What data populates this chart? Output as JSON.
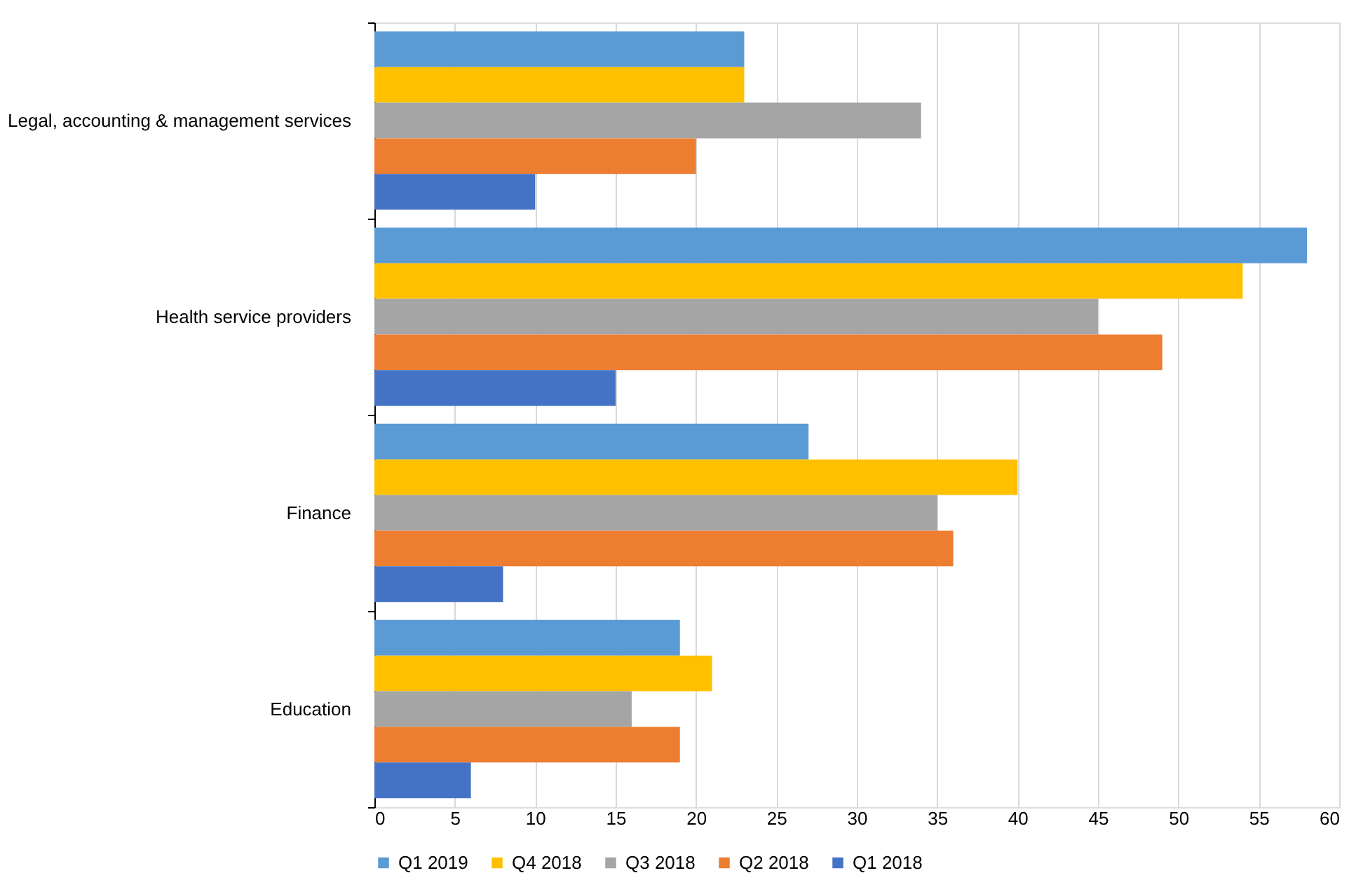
{
  "chart_data": {
    "type": "bar",
    "orientation": "horizontal",
    "categories": [
      "Legal, accounting & management services",
      "Health service providers",
      "Finance",
      "Education"
    ],
    "series": [
      {
        "name": "Q1 2019",
        "color": "#5b9bd5",
        "values": [
          23,
          58,
          27,
          19
        ]
      },
      {
        "name": "Q4 2018",
        "color": "#ffc000",
        "values": [
          23,
          54,
          40,
          21
        ]
      },
      {
        "name": "Q3 2018",
        "color": "#a5a5a5",
        "values": [
          34,
          45,
          35,
          16
        ]
      },
      {
        "name": "Q2 2018",
        "color": "#ed7d31",
        "values": [
          20,
          49,
          36,
          19
        ]
      },
      {
        "name": "Q1 2018",
        "color": "#4472c4",
        "values": [
          10,
          15,
          8,
          6
        ]
      }
    ],
    "xlim": [
      0,
      60
    ],
    "xticks": [
      0,
      5,
      10,
      15,
      20,
      25,
      30,
      35,
      40,
      45,
      50,
      55,
      60
    ],
    "grid": "x",
    "legend": "bottom"
  }
}
